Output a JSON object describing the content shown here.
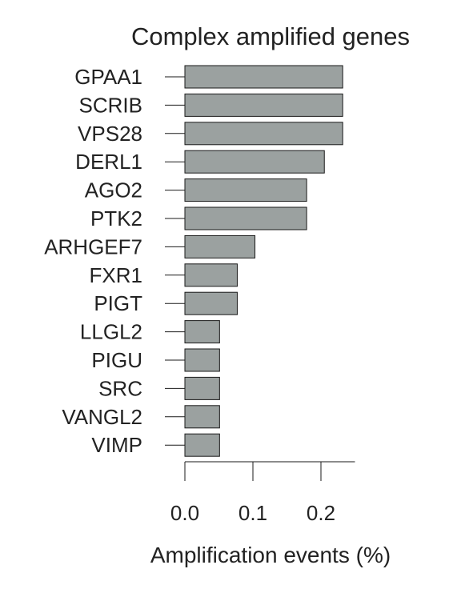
{
  "chart_data": {
    "type": "bar",
    "orientation": "horizontal",
    "title": "Complex amplified genes",
    "xlabel": "Amplification events (%)",
    "ylabel": "",
    "categories": [
      "GPAA1",
      "SCRIB",
      "VPS28",
      "DERL1",
      "AGO2",
      "PTK2",
      "ARHGEF7",
      "FXR1",
      "PIGT",
      "LLGL2",
      "PIGU",
      "SRC",
      "VANGL2",
      "VIMP"
    ],
    "values": [
      0.232,
      0.232,
      0.232,
      0.205,
      0.179,
      0.179,
      0.103,
      0.077,
      0.077,
      0.051,
      0.051,
      0.051,
      0.051,
      0.051
    ],
    "xlim": [
      0.0,
      0.25
    ],
    "xticks": [
      0.0,
      0.1,
      0.2
    ],
    "xtick_labels": [
      "0.0",
      "0.1",
      "0.2"
    ],
    "grid": false,
    "bar_color": "#9ba1a0",
    "bar_edge_color": "#1a1a1a"
  }
}
